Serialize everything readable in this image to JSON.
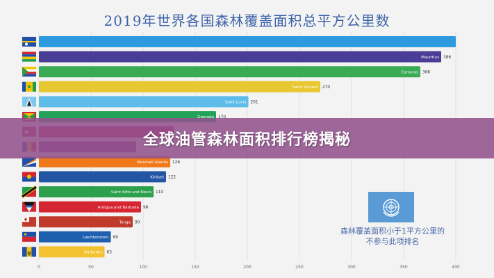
{
  "title": "2019年世界各国森林覆盖面积总平方公里数",
  "banner": "全球油管森林面积排行榜揭秘",
  "note": {
    "line1": "森林覆盖面积小于1平方公里的",
    "line2": "不参与此项排名"
  },
  "colors": {
    "title": "#3d63a8",
    "banner": "#92528c",
    "un_box": "#5b9bd5"
  },
  "chart_data": {
    "type": "bar",
    "orientation": "horizontal",
    "title": "2019年世界各国森林覆盖面积总平方公里数",
    "xlabel": "",
    "ylabel": "",
    "xlim": [
      0,
      400
    ],
    "xticks": [
      "0",
      "50",
      "100",
      "150",
      "200",
      "250",
      "300",
      "350",
      "400"
    ],
    "grid": true,
    "categories": [
      "",
      "Mauritius",
      "Comoros",
      "Saint Vincent",
      "Saint Lucia",
      "Grenada",
      "",
      "",
      "Marshall Islands",
      "Kiribati",
      "Saint Kitts and Nevis",
      "Antigua and Barbuda",
      "Tonga",
      "Liechtenstein",
      "Barbados"
    ],
    "values": [
      null,
      386,
      366,
      270,
      201,
      170,
      null,
      null,
      126,
      122,
      110,
      98,
      90,
      69,
      63
    ],
    "value_labels": [
      "",
      "386",
      "366",
      "270",
      "201",
      "170",
      "",
      "",
      "126",
      "122",
      "110",
      "98",
      "90",
      "69",
      "63"
    ],
    "colors": [
      "#2e9be0",
      "#4a3d96",
      "#3aaa55",
      "#e8c830",
      "#5dbce8",
      "#23a35a",
      "#c2185b",
      "#8e3b9c",
      "#f07a1a",
      "#2255a4",
      "#2ca04c",
      "#d62631",
      "#c0392b",
      "#1f5fb0",
      "#f2c230"
    ],
    "flag_icons": [
      "flag-nauru-icon",
      "flag-mauritius-icon",
      "flag-comoros-icon",
      "flag-saint-vincent-icon",
      "flag-saint-lucia-icon",
      "flag-grenada-icon",
      "flag-unknown-icon",
      "flag-andorra-icon",
      "flag-marshall-islands-icon",
      "flag-kiribati-icon",
      "flag-saint-kitts-icon",
      "flag-antigua-icon",
      "flag-tonga-icon",
      "flag-liechtenstein-icon",
      "flag-barbados-icon"
    ]
  }
}
